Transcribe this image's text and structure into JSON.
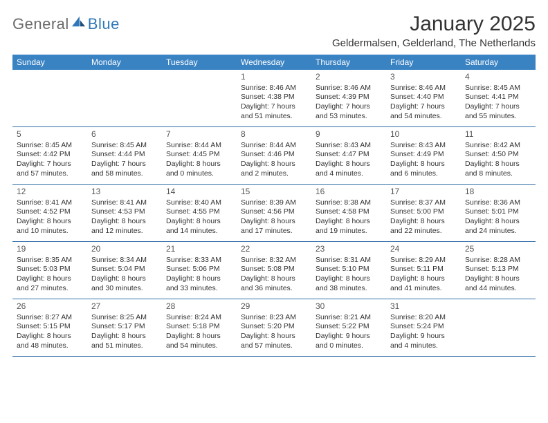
{
  "logo": {
    "part1": "General",
    "part2": "Blue"
  },
  "title": "January 2025",
  "location": "Geldermalsen, Gelderland, The Netherlands",
  "header_bg": "#3a83c3",
  "divider_color": "#2f6da8",
  "weekdays": [
    "Sunday",
    "Monday",
    "Tuesday",
    "Wednesday",
    "Thursday",
    "Friday",
    "Saturday"
  ],
  "weeks": [
    [
      null,
      null,
      null,
      {
        "n": "1",
        "sunrise": "8:46 AM",
        "sunset": "4:38 PM",
        "dh": "7",
        "dm": "51"
      },
      {
        "n": "2",
        "sunrise": "8:46 AM",
        "sunset": "4:39 PM",
        "dh": "7",
        "dm": "53"
      },
      {
        "n": "3",
        "sunrise": "8:46 AM",
        "sunset": "4:40 PM",
        "dh": "7",
        "dm": "54"
      },
      {
        "n": "4",
        "sunrise": "8:45 AM",
        "sunset": "4:41 PM",
        "dh": "7",
        "dm": "55"
      }
    ],
    [
      {
        "n": "5",
        "sunrise": "8:45 AM",
        "sunset": "4:42 PM",
        "dh": "7",
        "dm": "57"
      },
      {
        "n": "6",
        "sunrise": "8:45 AM",
        "sunset": "4:44 PM",
        "dh": "7",
        "dm": "58"
      },
      {
        "n": "7",
        "sunrise": "8:44 AM",
        "sunset": "4:45 PM",
        "dh": "8",
        "dm": "0"
      },
      {
        "n": "8",
        "sunrise": "8:44 AM",
        "sunset": "4:46 PM",
        "dh": "8",
        "dm": "2"
      },
      {
        "n": "9",
        "sunrise": "8:43 AM",
        "sunset": "4:47 PM",
        "dh": "8",
        "dm": "4"
      },
      {
        "n": "10",
        "sunrise": "8:43 AM",
        "sunset": "4:49 PM",
        "dh": "8",
        "dm": "6"
      },
      {
        "n": "11",
        "sunrise": "8:42 AM",
        "sunset": "4:50 PM",
        "dh": "8",
        "dm": "8"
      }
    ],
    [
      {
        "n": "12",
        "sunrise": "8:41 AM",
        "sunset": "4:52 PM",
        "dh": "8",
        "dm": "10"
      },
      {
        "n": "13",
        "sunrise": "8:41 AM",
        "sunset": "4:53 PM",
        "dh": "8",
        "dm": "12"
      },
      {
        "n": "14",
        "sunrise": "8:40 AM",
        "sunset": "4:55 PM",
        "dh": "8",
        "dm": "14"
      },
      {
        "n": "15",
        "sunrise": "8:39 AM",
        "sunset": "4:56 PM",
        "dh": "8",
        "dm": "17"
      },
      {
        "n": "16",
        "sunrise": "8:38 AM",
        "sunset": "4:58 PM",
        "dh": "8",
        "dm": "19"
      },
      {
        "n": "17",
        "sunrise": "8:37 AM",
        "sunset": "5:00 PM",
        "dh": "8",
        "dm": "22"
      },
      {
        "n": "18",
        "sunrise": "8:36 AM",
        "sunset": "5:01 PM",
        "dh": "8",
        "dm": "24"
      }
    ],
    [
      {
        "n": "19",
        "sunrise": "8:35 AM",
        "sunset": "5:03 PM",
        "dh": "8",
        "dm": "27"
      },
      {
        "n": "20",
        "sunrise": "8:34 AM",
        "sunset": "5:04 PM",
        "dh": "8",
        "dm": "30"
      },
      {
        "n": "21",
        "sunrise": "8:33 AM",
        "sunset": "5:06 PM",
        "dh": "8",
        "dm": "33"
      },
      {
        "n": "22",
        "sunrise": "8:32 AM",
        "sunset": "5:08 PM",
        "dh": "8",
        "dm": "36"
      },
      {
        "n": "23",
        "sunrise": "8:31 AM",
        "sunset": "5:10 PM",
        "dh": "8",
        "dm": "38"
      },
      {
        "n": "24",
        "sunrise": "8:29 AM",
        "sunset": "5:11 PM",
        "dh": "8",
        "dm": "41"
      },
      {
        "n": "25",
        "sunrise": "8:28 AM",
        "sunset": "5:13 PM",
        "dh": "8",
        "dm": "44"
      }
    ],
    [
      {
        "n": "26",
        "sunrise": "8:27 AM",
        "sunset": "5:15 PM",
        "dh": "8",
        "dm": "48"
      },
      {
        "n": "27",
        "sunrise": "8:25 AM",
        "sunset": "5:17 PM",
        "dh": "8",
        "dm": "51"
      },
      {
        "n": "28",
        "sunrise": "8:24 AM",
        "sunset": "5:18 PM",
        "dh": "8",
        "dm": "54"
      },
      {
        "n": "29",
        "sunrise": "8:23 AM",
        "sunset": "5:20 PM",
        "dh": "8",
        "dm": "57"
      },
      {
        "n": "30",
        "sunrise": "8:21 AM",
        "sunset": "5:22 PM",
        "dh": "9",
        "dm": "0"
      },
      {
        "n": "31",
        "sunrise": "8:20 AM",
        "sunset": "5:24 PM",
        "dh": "9",
        "dm": "4"
      },
      null
    ]
  ]
}
